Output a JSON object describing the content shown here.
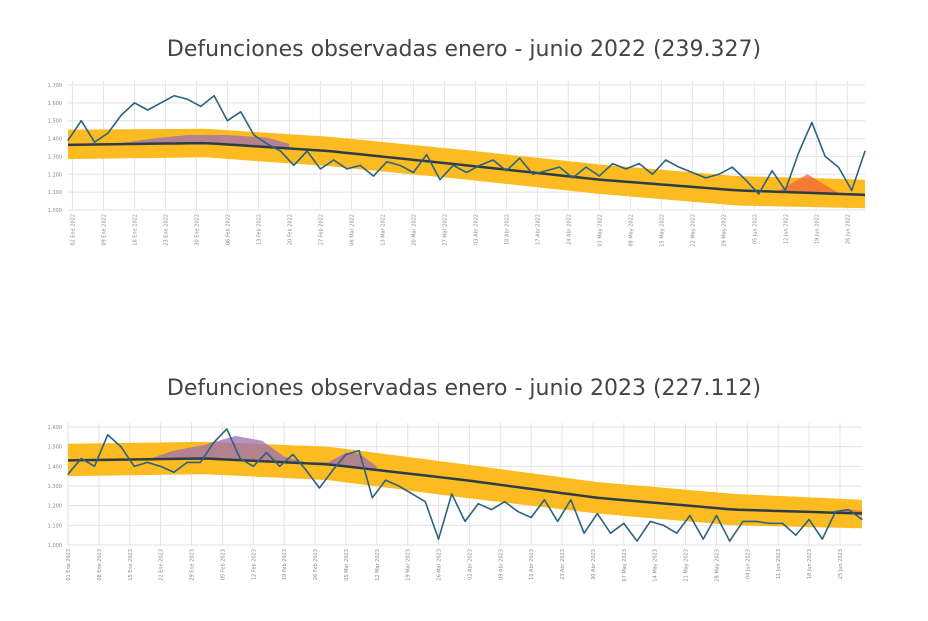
{
  "chart_data": [
    {
      "type": "line",
      "title": "Defunciones observadas enero - junio 2022 (239.327)",
      "xlabel": "",
      "ylabel": "",
      "ylim": [
        1000,
        1700
      ],
      "yticks": [
        "1.000",
        "1.100",
        "1.200",
        "1.300",
        "1.400",
        "1.500",
        "1.600",
        "1.700"
      ],
      "ytick_values": [
        1000,
        1100,
        1200,
        1300,
        1400,
        1500,
        1600,
        1700
      ],
      "xlim": [
        "2022-01-01",
        "2022-06-30"
      ],
      "xticks": [
        "02 Ene 2022",
        "09 Ene 2022",
        "16 Ene 2022",
        "23 Ene 2022",
        "30 Ene 2022",
        "06 Feb 2022",
        "13 Feb 2022",
        "20 Feb 2022",
        "27 Feb 2022",
        "06 Mar 2022",
        "13 Mar 2022",
        "20 Mar 2022",
        "27 Mar 2022",
        "03 Abr 2022",
        "10 Abr 2022",
        "17 Abr 2022",
        "24 Abr 2022",
        "01 May 2022",
        "08 May 2022",
        "15 May 2022",
        "22 May 2022",
        "29 May 2022",
        "05 Jun 2022",
        "12 Jun 2022",
        "19 Jun 2022",
        "26 Jun 2022"
      ],
      "grid": true,
      "colors": {
        "observed": "#2b6280",
        "expected": "#2e3c4a",
        "band": "#fbbb21",
        "excess": "#9c6db3",
        "deficit_excess": "#f0663a",
        "grid": "#e3e3e3"
      },
      "observed": {
        "x": [
          "2022-01-01",
          "2022-01-04",
          "2022-01-07",
          "2022-01-10",
          "2022-01-13",
          "2022-01-16",
          "2022-01-19",
          "2022-01-22",
          "2022-01-25",
          "2022-01-28",
          "2022-01-31",
          "2022-02-03",
          "2022-02-06",
          "2022-02-09",
          "2022-02-12",
          "2022-02-15",
          "2022-02-18",
          "2022-02-21",
          "2022-02-24",
          "2022-02-27",
          "2022-03-02",
          "2022-03-05",
          "2022-03-08",
          "2022-03-11",
          "2022-03-14",
          "2022-03-17",
          "2022-03-20",
          "2022-03-23",
          "2022-03-26",
          "2022-03-29",
          "2022-04-01",
          "2022-04-04",
          "2022-04-07",
          "2022-04-10",
          "2022-04-13",
          "2022-04-16",
          "2022-04-19",
          "2022-04-22",
          "2022-04-25",
          "2022-04-28",
          "2022-05-01",
          "2022-05-04",
          "2022-05-07",
          "2022-05-10",
          "2022-05-13",
          "2022-05-16",
          "2022-05-19",
          "2022-05-22",
          "2022-05-25",
          "2022-05-28",
          "2022-05-31",
          "2022-06-03",
          "2022-06-06",
          "2022-06-09",
          "2022-06-12",
          "2022-06-15",
          "2022-06-18",
          "2022-06-21",
          "2022-06-24",
          "2022-06-27",
          "2022-06-30"
        ],
        "y": [
          1390,
          1500,
          1380,
          1430,
          1530,
          1600,
          1560,
          1600,
          1640,
          1620,
          1580,
          1640,
          1500,
          1550,
          1420,
          1370,
          1330,
          1250,
          1330,
          1230,
          1280,
          1230,
          1250,
          1190,
          1270,
          1250,
          1210,
          1310,
          1170,
          1250,
          1210,
          1250,
          1280,
          1220,
          1290,
          1200,
          1220,
          1240,
          1180,
          1240,
          1190,
          1260,
          1230,
          1260,
          1200,
          1280,
          1240,
          1210,
          1180,
          1200,
          1240,
          1170,
          1090,
          1220,
          1110,
          1320,
          1490,
          1300,
          1240,
          1110,
          1330
        ]
      },
      "expected": [
        {
          "date": "2022-01-01",
          "value": 1365,
          "lower": 1285,
          "upper": 1450
        },
        {
          "date": "2022-02-01",
          "value": 1375,
          "lower": 1295,
          "upper": 1455
        },
        {
          "date": "2022-03-01",
          "value": 1330,
          "lower": 1245,
          "upper": 1410
        },
        {
          "date": "2022-04-01",
          "value": 1250,
          "lower": 1170,
          "upper": 1335
        },
        {
          "date": "2022-05-01",
          "value": 1170,
          "lower": 1090,
          "upper": 1255
        },
        {
          "date": "2022-06-01",
          "value": 1110,
          "lower": 1025,
          "upper": 1190
        },
        {
          "date": "2022-06-30",
          "value": 1085,
          "lower": 1010,
          "upper": 1170
        }
      ],
      "excess": [
        {
          "color": "#9c6db3",
          "points": [
            [
              "2022-01-13",
              1375
            ],
            [
              "2022-01-20",
              1400
            ],
            [
              "2022-01-28",
              1420
            ],
            [
              "2022-02-06",
              1420
            ],
            [
              "2022-02-15",
              1405
            ],
            [
              "2022-02-20",
              1370
            ]
          ]
        },
        {
          "color": "#f0663a",
          "points": [
            [
              "2022-06-10",
              1100
            ],
            [
              "2022-06-17",
              1200
            ],
            [
              "2022-06-24",
              1095
            ]
          ]
        }
      ]
    },
    {
      "type": "line",
      "title": "Defunciones observadas enero - junio 2023 (227.112)",
      "xlabel": "",
      "ylabel": "",
      "ylim": [
        1000,
        1600
      ],
      "yticks": [
        "1.000",
        "1.100",
        "1.200",
        "1.300",
        "1.400",
        "1.500",
        "1.600"
      ],
      "ytick_values": [
        1000,
        1100,
        1200,
        1300,
        1400,
        1500,
        1600
      ],
      "xlim": [
        "2023-01-01",
        "2023-06-30"
      ],
      "xticks": [
        "01 Ene 2023",
        "08 Ene 2023",
        "15 Ene 2023",
        "22 Ene 2023",
        "29 Ene 2023",
        "05 Feb 2023",
        "12 Feb 2023",
        "19 Feb 2023",
        "26 Feb 2023",
        "05 Mar 2023",
        "12 Mar 2023",
        "19 Mar 2023",
        "26 Mar 2023",
        "02 Abr 2023",
        "09 Abr 2023",
        "16 Abr 2023",
        "23 Abr 2023",
        "30 Abr 2023",
        "07 May 2023",
        "14 May 2023",
        "21 May 2023",
        "28 May 2023",
        "04 Jun 2023",
        "11 Jun 2023",
        "18 Jun 2023",
        "25 Jun 2023"
      ],
      "grid": true,
      "colors": {
        "observed": "#2b6280",
        "expected": "#2e3c4a",
        "band": "#fbbb21",
        "excess": "#9c6db3",
        "deficit_excess": "#f0663a",
        "grid": "#e3e3e3"
      },
      "observed": {
        "x": [
          "2023-01-01",
          "2023-01-04",
          "2023-01-07",
          "2023-01-10",
          "2023-01-13",
          "2023-01-16",
          "2023-01-19",
          "2023-01-22",
          "2023-01-25",
          "2023-01-28",
          "2023-01-31",
          "2023-02-03",
          "2023-02-06",
          "2023-02-09",
          "2023-02-12",
          "2023-02-15",
          "2023-02-18",
          "2023-02-21",
          "2023-02-24",
          "2023-02-27",
          "2023-03-02",
          "2023-03-05",
          "2023-03-08",
          "2023-03-11",
          "2023-03-14",
          "2023-03-17",
          "2023-03-20",
          "2023-03-23",
          "2023-03-26",
          "2023-03-29",
          "2023-04-01",
          "2023-04-04",
          "2023-04-07",
          "2023-04-10",
          "2023-04-13",
          "2023-04-16",
          "2023-04-19",
          "2023-04-22",
          "2023-04-25",
          "2023-04-28",
          "2023-05-01",
          "2023-05-04",
          "2023-05-07",
          "2023-05-10",
          "2023-05-13",
          "2023-05-16",
          "2023-05-19",
          "2023-05-22",
          "2023-05-25",
          "2023-05-28",
          "2023-05-31",
          "2023-06-03",
          "2023-06-06",
          "2023-06-09",
          "2023-06-12",
          "2023-06-15",
          "2023-06-18",
          "2023-06-21",
          "2023-06-24",
          "2023-06-27",
          "2023-06-30"
        ],
        "y": [
          1360,
          1440,
          1400,
          1560,
          1500,
          1400,
          1420,
          1400,
          1370,
          1420,
          1420,
          1520,
          1590,
          1440,
          1400,
          1470,
          1400,
          1460,
          1380,
          1290,
          1380,
          1460,
          1480,
          1240,
          1330,
          1300,
          1260,
          1220,
          1030,
          1260,
          1120,
          1210,
          1180,
          1220,
          1170,
          1140,
          1230,
          1120,
          1230,
          1060,
          1160,
          1060,
          1110,
          1020,
          1120,
          1100,
          1060,
          1150,
          1030,
          1150,
          1020,
          1120,
          1120,
          1110,
          1110,
          1050,
          1130,
          1030,
          1170,
          1180,
          1130
        ]
      },
      "expected": [
        {
          "date": "2023-01-01",
          "value": 1430,
          "lower": 1350,
          "upper": 1515
        },
        {
          "date": "2023-02-01",
          "value": 1440,
          "lower": 1360,
          "upper": 1525
        },
        {
          "date": "2023-03-01",
          "value": 1410,
          "lower": 1330,
          "upper": 1500
        },
        {
          "date": "2023-04-01",
          "value": 1330,
          "lower": 1240,
          "upper": 1410
        },
        {
          "date": "2023-05-01",
          "value": 1240,
          "lower": 1160,
          "upper": 1320
        },
        {
          "date": "2023-06-01",
          "value": 1180,
          "lower": 1100,
          "upper": 1260
        },
        {
          "date": "2023-06-30",
          "value": 1160,
          "lower": 1085,
          "upper": 1230
        }
      ],
      "excess": [
        {
          "color": "#9c6db3",
          "points": [
            [
              "2023-01-19",
              1435
            ],
            [
              "2023-01-25",
              1480
            ],
            [
              "2023-02-01",
              1510
            ],
            [
              "2023-02-08",
              1555
            ],
            [
              "2023-02-14",
              1530
            ],
            [
              "2023-02-19",
              1450
            ],
            [
              "2023-02-24",
              1420
            ],
            [
              "2023-03-01",
              1420
            ],
            [
              "2023-03-05",
              1470
            ],
            [
              "2023-03-08",
              1465
            ],
            [
              "2023-03-12",
              1400
            ]
          ]
        },
        {
          "color": "#f0663a",
          "points": [
            [
              "2023-06-22",
              1165
            ],
            [
              "2023-06-27",
              1180
            ],
            [
              "2023-06-30",
              1175
            ]
          ]
        }
      ]
    }
  ]
}
